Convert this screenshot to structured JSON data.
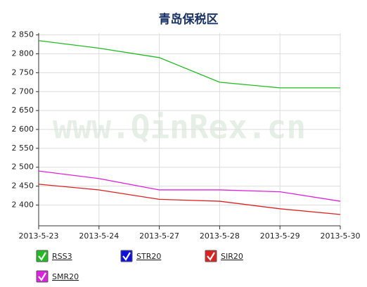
{
  "chart_data": {
    "type": "line",
    "title": "青岛保税区",
    "watermark": "www.QinRex.cn",
    "categories": [
      "2013-5-23",
      "2013-5-24",
      "2013-5-27",
      "2013-5-28",
      "2013-5-29",
      "2013-5-30"
    ],
    "series": [
      {
        "name": "RSS3",
        "color": "#22bb22",
        "values": [
          2835,
          2815,
          2790,
          2725,
          2710,
          2710
        ]
      },
      {
        "name": "STR20",
        "color": "#1111dd",
        "values": [
          null,
          null,
          null,
          null,
          null,
          null
        ]
      },
      {
        "name": "SIR20",
        "color": "#dd2222",
        "values": [
          2455,
          2440,
          2415,
          2410,
          2390,
          2375
        ]
      },
      {
        "name": "SMR20",
        "color": "#dd22dd",
        "values": [
          2490,
          2470,
          2440,
          2440,
          2435,
          2410
        ]
      }
    ],
    "ylim": [
      2345,
      2855
    ],
    "yticks": [
      {
        "value": 2400,
        "label": "2 400"
      },
      {
        "value": 2450,
        "label": "2 450"
      },
      {
        "value": 2500,
        "label": "2 500"
      },
      {
        "value": 2550,
        "label": "2 550"
      },
      {
        "value": 2600,
        "label": "2 600"
      },
      {
        "value": 2650,
        "label": "2 650"
      },
      {
        "value": 2700,
        "label": "2 700"
      },
      {
        "value": 2750,
        "label": "2 750"
      },
      {
        "value": 2800,
        "label": "2 800"
      },
      {
        "value": 2850,
        "label": "2 850"
      }
    ],
    "grid": true
  }
}
